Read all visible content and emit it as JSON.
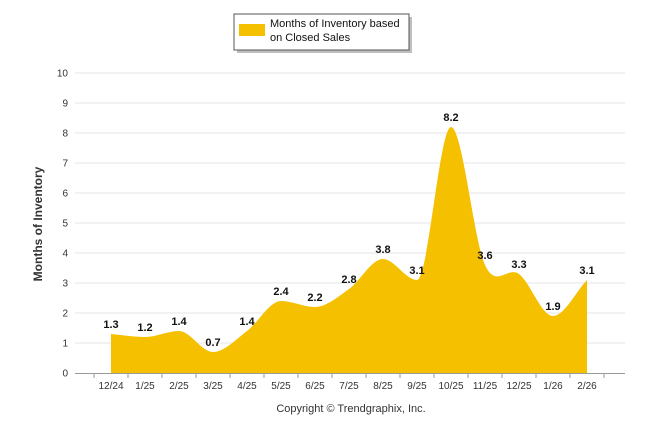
{
  "chart_data": {
    "type": "area",
    "title": "",
    "xlabel": "",
    "ylabel": "Months of Inventory",
    "ylim": [
      0,
      10
    ],
    "yticks": [
      0,
      1,
      2,
      3,
      4,
      5,
      6,
      7,
      8,
      9,
      10
    ],
    "categories": [
      "12/24",
      "1/25",
      "2/25",
      "3/25",
      "4/25",
      "5/25",
      "6/25",
      "7/25",
      "8/25",
      "9/25",
      "10/25",
      "11/25",
      "12/25",
      "1/26",
      "2/26"
    ],
    "series": [
      {
        "name": "Months of Inventory based on Closed Sales",
        "values": [
          1.3,
          1.2,
          1.4,
          0.7,
          1.4,
          2.4,
          2.2,
          2.8,
          3.8,
          3.1,
          8.2,
          3.6,
          3.3,
          1.9,
          3.1
        ],
        "color": "#f5c000"
      }
    ],
    "legend": {
      "line1": "Months of Inventory based",
      "line2": "on Closed Sales",
      "position": "top-center"
    },
    "grid": true
  },
  "footer": {
    "copyright": "Copyright © Trendgraphix, Inc."
  },
  "colors": {
    "fill": "#f5c000",
    "grid": "#e6e6e6",
    "axis": "#9a9a9a"
  }
}
